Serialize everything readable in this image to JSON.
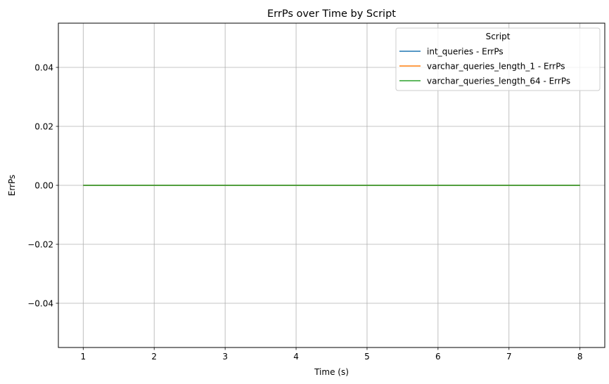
{
  "chart_data": {
    "type": "line",
    "title": "ErrPs over Time by Script",
    "xlabel": "Time (s)",
    "ylabel": "ErrPs",
    "xlim": [
      0.65,
      8.35
    ],
    "ylim": [
      -0.055,
      0.055
    ],
    "x_ticks": [
      1,
      2,
      3,
      4,
      5,
      6,
      7,
      8
    ],
    "y_ticks": [
      -0.04,
      -0.02,
      0.0,
      0.02,
      0.04
    ],
    "y_tick_labels": [
      "−0.04",
      "−0.02",
      "0.00",
      "0.02",
      "0.04"
    ],
    "grid": true,
    "legend": {
      "title": "Script",
      "placement": "top-right"
    },
    "x": [
      1,
      2,
      3,
      4,
      5,
      6,
      7,
      8
    ],
    "series": [
      {
        "name": "int_queries - ErrPs",
        "color": "#1f77b4",
        "values": [
          0,
          0,
          0,
          0,
          0,
          0,
          0,
          0
        ]
      },
      {
        "name": "varchar_queries_length_1 - ErrPs",
        "color": "#ff7f0e",
        "values": [
          0,
          0,
          0,
          0,
          0,
          0,
          0,
          0
        ]
      },
      {
        "name": "varchar_queries_length_64 - ErrPs",
        "color": "#2ca02c",
        "values": [
          0,
          0,
          0,
          0,
          0,
          0,
          0,
          0
        ]
      }
    ]
  }
}
